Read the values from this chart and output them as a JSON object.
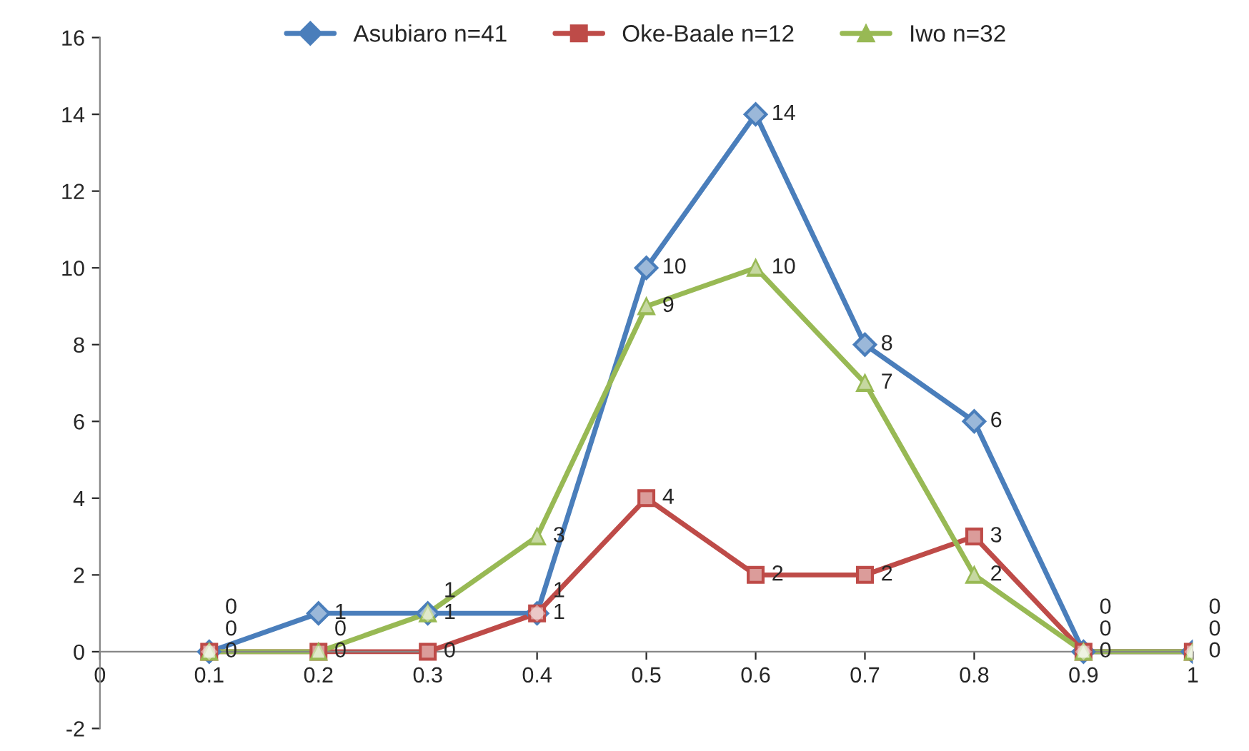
{
  "chart_data": {
    "type": "line",
    "x": [
      0.1,
      0.2,
      0.3,
      0.4,
      0.5,
      0.6,
      0.7,
      0.8,
      0.9,
      1
    ],
    "series": [
      {
        "name": "Asubiaro n=41",
        "color": "#4a7ebb",
        "marker": "diamond",
        "values": [
          0,
          1,
          1,
          1,
          10,
          14,
          8,
          6,
          0,
          0
        ]
      },
      {
        "name": "Oke-Baale n=12",
        "color": "#be4b48",
        "marker": "square",
        "values": [
          0,
          0,
          0,
          1,
          4,
          2,
          2,
          3,
          0,
          0
        ]
      },
      {
        "name": "Iwo n=32",
        "color": "#98b954",
        "marker": "triangle",
        "values": [
          0,
          0,
          1,
          3,
          9,
          10,
          7,
          2,
          0,
          0
        ]
      }
    ],
    "xlim": [
      0,
      1
    ],
    "xticks": [
      0,
      0.1,
      0.2,
      0.3,
      0.4,
      0.5,
      0.6,
      0.7,
      0.8,
      0.9,
      1
    ],
    "ylim": [
      -2,
      16
    ],
    "yticks": [
      -2,
      0,
      2,
      4,
      6,
      8,
      10,
      12,
      14,
      16
    ],
    "data_labels": true,
    "grid": false,
    "legend": "top",
    "line_style": "solid"
  }
}
